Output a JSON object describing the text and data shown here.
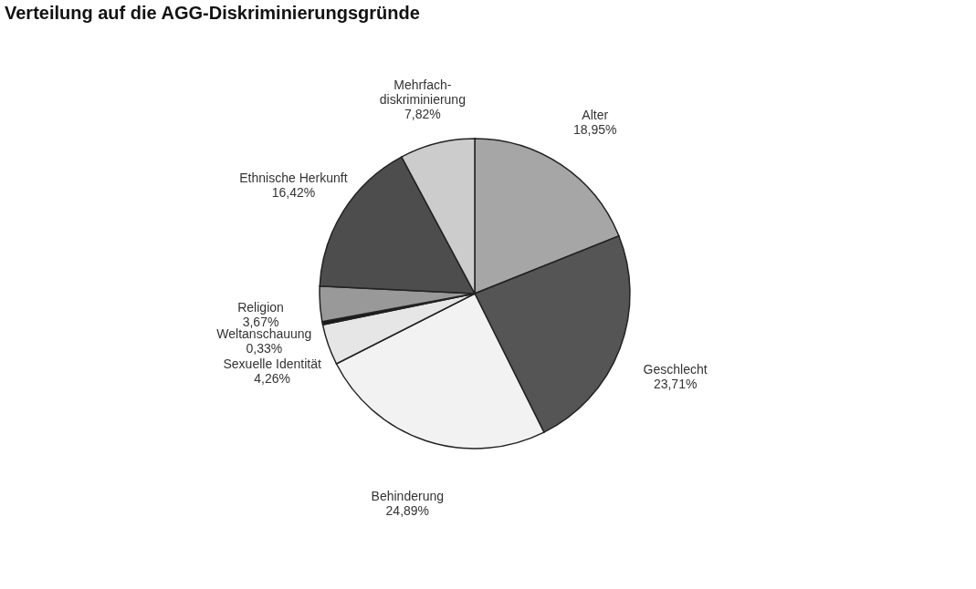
{
  "chart_data": {
    "type": "pie",
    "title": "Verteilung auf die AGG-Diskriminierungsgründe",
    "categories": [
      "Alter",
      "Geschlecht",
      "Behinderung",
      "Sexuelle Identität",
      "Weltanschauung",
      "Religion",
      "Ethnische Herkunft",
      "Mehrfach-\ndiskriminierung"
    ],
    "values": [
      18.95,
      23.71,
      24.89,
      4.26,
      0.33,
      3.67,
      16.42,
      7.82
    ],
    "value_labels": [
      "18,95%",
      "23,71%",
      "24,89%",
      "4,26%",
      "0,33%",
      "3,67%",
      "16,42%",
      "7,82%"
    ],
    "colors": [
      "#a6a6a6",
      "#555555",
      "#f2f2f2",
      "#e6e6e6",
      "#1a1a1a",
      "#999999",
      "#4d4d4d",
      "#cccccc"
    ],
    "legend": false
  }
}
